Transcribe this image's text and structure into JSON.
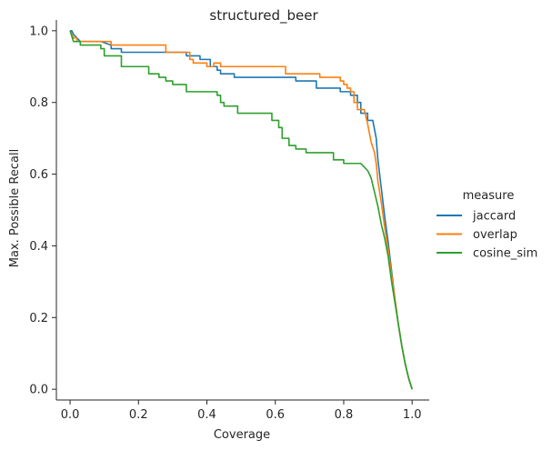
{
  "chart_data": {
    "type": "line",
    "title": "structured_beer",
    "xlabel": "Coverage",
    "ylabel": "Max. Possible Recall",
    "xlim": [
      -0.04,
      1.05
    ],
    "ylim": [
      -0.03,
      1.03
    ],
    "xticks": [
      0.0,
      0.2,
      0.4,
      0.6,
      0.8,
      1.0
    ],
    "xtick_labels": [
      "0.0",
      "0.2",
      "0.4",
      "0.6",
      "0.8",
      "1.0"
    ],
    "yticks": [
      0.0,
      0.2,
      0.4,
      0.6,
      0.8,
      1.0
    ],
    "ytick_labels": [
      "0.0",
      "0.2",
      "0.4",
      "0.6",
      "0.8",
      "1.0"
    ],
    "grid": false,
    "legend": {
      "title": "measure",
      "placement": "right-outside"
    },
    "series": [
      {
        "name": "jaccard",
        "color": "#1f77b4",
        "points": [
          [
            0.0,
            1.0
          ],
          [
            0.005,
            1.0
          ],
          [
            0.01,
            0.99
          ],
          [
            0.02,
            0.98
          ],
          [
            0.03,
            0.97
          ],
          [
            0.06,
            0.97
          ],
          [
            0.09,
            0.97
          ],
          [
            0.12,
            0.96
          ],
          [
            0.12,
            0.95
          ],
          [
            0.15,
            0.95
          ],
          [
            0.15,
            0.94
          ],
          [
            0.34,
            0.94
          ],
          [
            0.34,
            0.93
          ],
          [
            0.38,
            0.93
          ],
          [
            0.38,
            0.92
          ],
          [
            0.41,
            0.92
          ],
          [
            0.41,
            0.9
          ],
          [
            0.43,
            0.9
          ],
          [
            0.43,
            0.89
          ],
          [
            0.44,
            0.89
          ],
          [
            0.44,
            0.88
          ],
          [
            0.48,
            0.88
          ],
          [
            0.48,
            0.87
          ],
          [
            0.66,
            0.87
          ],
          [
            0.66,
            0.86
          ],
          [
            0.72,
            0.86
          ],
          [
            0.72,
            0.84
          ],
          [
            0.79,
            0.84
          ],
          [
            0.79,
            0.83
          ],
          [
            0.82,
            0.83
          ],
          [
            0.82,
            0.82
          ],
          [
            0.84,
            0.82
          ],
          [
            0.84,
            0.8
          ],
          [
            0.85,
            0.8
          ],
          [
            0.85,
            0.77
          ],
          [
            0.87,
            0.77
          ],
          [
            0.87,
            0.75
          ],
          [
            0.885,
            0.75
          ],
          [
            0.895,
            0.7
          ],
          [
            0.9,
            0.64
          ],
          [
            0.905,
            0.6
          ],
          [
            0.91,
            0.56
          ],
          [
            0.915,
            0.52
          ],
          [
            0.92,
            0.48
          ],
          [
            0.93,
            0.41
          ],
          [
            0.94,
            0.33
          ],
          [
            0.95,
            0.25
          ],
          [
            0.96,
            0.18
          ],
          [
            0.97,
            0.12
          ],
          [
            0.98,
            0.07
          ],
          [
            0.99,
            0.03
          ],
          [
            1.0,
            0.0
          ]
        ]
      },
      {
        "name": "overlap",
        "color": "#ff7f0e",
        "points": [
          [
            0.0,
            1.0
          ],
          [
            0.01,
            0.98
          ],
          [
            0.02,
            0.98
          ],
          [
            0.02,
            0.97
          ],
          [
            0.12,
            0.97
          ],
          [
            0.12,
            0.96
          ],
          [
            0.28,
            0.96
          ],
          [
            0.28,
            0.94
          ],
          [
            0.35,
            0.94
          ],
          [
            0.35,
            0.92
          ],
          [
            0.36,
            0.92
          ],
          [
            0.36,
            0.91
          ],
          [
            0.4,
            0.91
          ],
          [
            0.4,
            0.9
          ],
          [
            0.42,
            0.9
          ],
          [
            0.42,
            0.91
          ],
          [
            0.44,
            0.91
          ],
          [
            0.44,
            0.9
          ],
          [
            0.63,
            0.9
          ],
          [
            0.63,
            0.88
          ],
          [
            0.73,
            0.88
          ],
          [
            0.73,
            0.87
          ],
          [
            0.79,
            0.87
          ],
          [
            0.79,
            0.86
          ],
          [
            0.8,
            0.86
          ],
          [
            0.8,
            0.85
          ],
          [
            0.81,
            0.85
          ],
          [
            0.81,
            0.84
          ],
          [
            0.82,
            0.84
          ],
          [
            0.82,
            0.83
          ],
          [
            0.83,
            0.83
          ],
          [
            0.83,
            0.8
          ],
          [
            0.84,
            0.8
          ],
          [
            0.84,
            0.78
          ],
          [
            0.86,
            0.78
          ],
          [
            0.87,
            0.74
          ],
          [
            0.88,
            0.69
          ],
          [
            0.89,
            0.66
          ],
          [
            0.895,
            0.63
          ],
          [
            0.9,
            0.58
          ],
          [
            0.91,
            0.52
          ],
          [
            0.92,
            0.45
          ],
          [
            0.93,
            0.39
          ],
          [
            0.94,
            0.32
          ],
          [
            0.95,
            0.25
          ],
          [
            0.96,
            0.18
          ],
          [
            0.97,
            0.12
          ],
          [
            0.98,
            0.07
          ],
          [
            0.99,
            0.03
          ],
          [
            1.0,
            0.0
          ]
        ]
      },
      {
        "name": "cosine_sim",
        "color": "#2ca02c",
        "points": [
          [
            0.0,
            1.0
          ],
          [
            0.01,
            0.97
          ],
          [
            0.03,
            0.97
          ],
          [
            0.03,
            0.96
          ],
          [
            0.09,
            0.96
          ],
          [
            0.09,
            0.95
          ],
          [
            0.1,
            0.95
          ],
          [
            0.1,
            0.93
          ],
          [
            0.15,
            0.93
          ],
          [
            0.15,
            0.9
          ],
          [
            0.23,
            0.9
          ],
          [
            0.23,
            0.88
          ],
          [
            0.26,
            0.88
          ],
          [
            0.26,
            0.87
          ],
          [
            0.28,
            0.87
          ],
          [
            0.28,
            0.86
          ],
          [
            0.3,
            0.86
          ],
          [
            0.3,
            0.85
          ],
          [
            0.34,
            0.85
          ],
          [
            0.34,
            0.83
          ],
          [
            0.43,
            0.83
          ],
          [
            0.43,
            0.82
          ],
          [
            0.44,
            0.82
          ],
          [
            0.44,
            0.8
          ],
          [
            0.45,
            0.8
          ],
          [
            0.45,
            0.79
          ],
          [
            0.49,
            0.79
          ],
          [
            0.49,
            0.77
          ],
          [
            0.59,
            0.77
          ],
          [
            0.59,
            0.75
          ],
          [
            0.61,
            0.75
          ],
          [
            0.61,
            0.73
          ],
          [
            0.62,
            0.73
          ],
          [
            0.62,
            0.7
          ],
          [
            0.64,
            0.7
          ],
          [
            0.64,
            0.68
          ],
          [
            0.66,
            0.68
          ],
          [
            0.66,
            0.67
          ],
          [
            0.69,
            0.67
          ],
          [
            0.69,
            0.66
          ],
          [
            0.77,
            0.66
          ],
          [
            0.77,
            0.64
          ],
          [
            0.8,
            0.64
          ],
          [
            0.8,
            0.63
          ],
          [
            0.85,
            0.63
          ],
          [
            0.86,
            0.62
          ],
          [
            0.87,
            0.61
          ],
          [
            0.88,
            0.59
          ],
          [
            0.89,
            0.55
          ],
          [
            0.9,
            0.51
          ],
          [
            0.91,
            0.46
          ],
          [
            0.92,
            0.42
          ],
          [
            0.93,
            0.37
          ],
          [
            0.94,
            0.3
          ],
          [
            0.95,
            0.24
          ],
          [
            0.96,
            0.18
          ],
          [
            0.97,
            0.12
          ],
          [
            0.98,
            0.07
          ],
          [
            0.99,
            0.03
          ],
          [
            1.0,
            0.0
          ]
        ]
      }
    ]
  }
}
